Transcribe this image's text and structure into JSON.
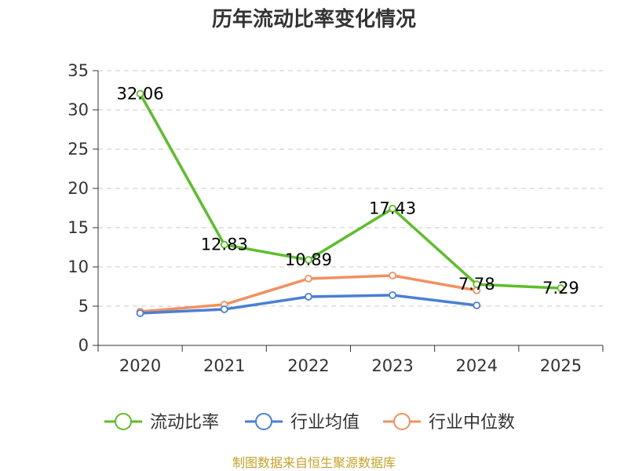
{
  "chart_data": {
    "type": "line",
    "title": "历年流动比率变化情况",
    "categories": [
      "2020",
      "2021",
      "2022",
      "2023",
      "2024",
      "2025"
    ],
    "ylim": [
      0,
      35
    ],
    "yticks": [
      0,
      5,
      10,
      15,
      20,
      25,
      30,
      35
    ],
    "grid": true,
    "legend_position": "bottom",
    "series": [
      {
        "name": "流动比率",
        "color": "#5cbf2a",
        "values": [
          32.06,
          12.83,
          10.89,
          17.43,
          7.78,
          7.29
        ],
        "labels": [
          "32.06",
          "12.83",
          "10.89",
          "17.43",
          "7.78",
          "7.29"
        ]
      },
      {
        "name": "行业均值",
        "color": "#4a7fd6",
        "values": [
          4.1,
          4.6,
          6.2,
          6.4,
          5.1,
          null
        ]
      },
      {
        "name": "行业中位数",
        "color": "#f39060",
        "values": [
          4.3,
          5.2,
          8.5,
          8.9,
          7.0,
          null
        ]
      }
    ]
  },
  "source_text": "制图数据来自恒生聚源数据库"
}
